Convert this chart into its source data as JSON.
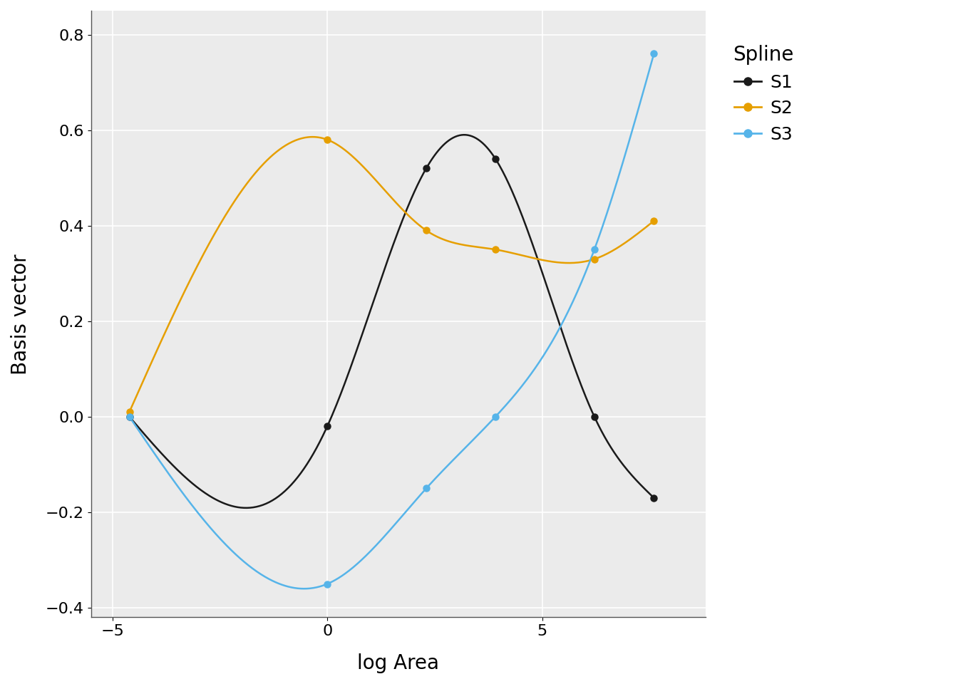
{
  "xlabel": "log Area",
  "ylabel": "Basis vector",
  "xlim": [
    -5.5,
    8.8
  ],
  "ylim": [
    -0.42,
    0.85
  ],
  "xticks": [
    -5,
    0,
    5
  ],
  "yticks": [
    -0.4,
    -0.2,
    0.0,
    0.2,
    0.4,
    0.6,
    0.8
  ],
  "knots": [
    -4.6051702,
    0.0,
    2.302585,
    3.912023,
    6.214608,
    7.600902
  ],
  "colors_S1": "#1a1a1a",
  "colors_S2": "#E69F00",
  "colors_S3": "#56B4E9",
  "bg_color": "#EBEBEB",
  "grid_color": "#FFFFFF",
  "legend_title": "Spline",
  "linewidth": 1.8,
  "markersize": 6.5,
  "title_fontsize": 20,
  "axis_fontsize": 20,
  "tick_fontsize": 16,
  "legend_fontsize": 18
}
